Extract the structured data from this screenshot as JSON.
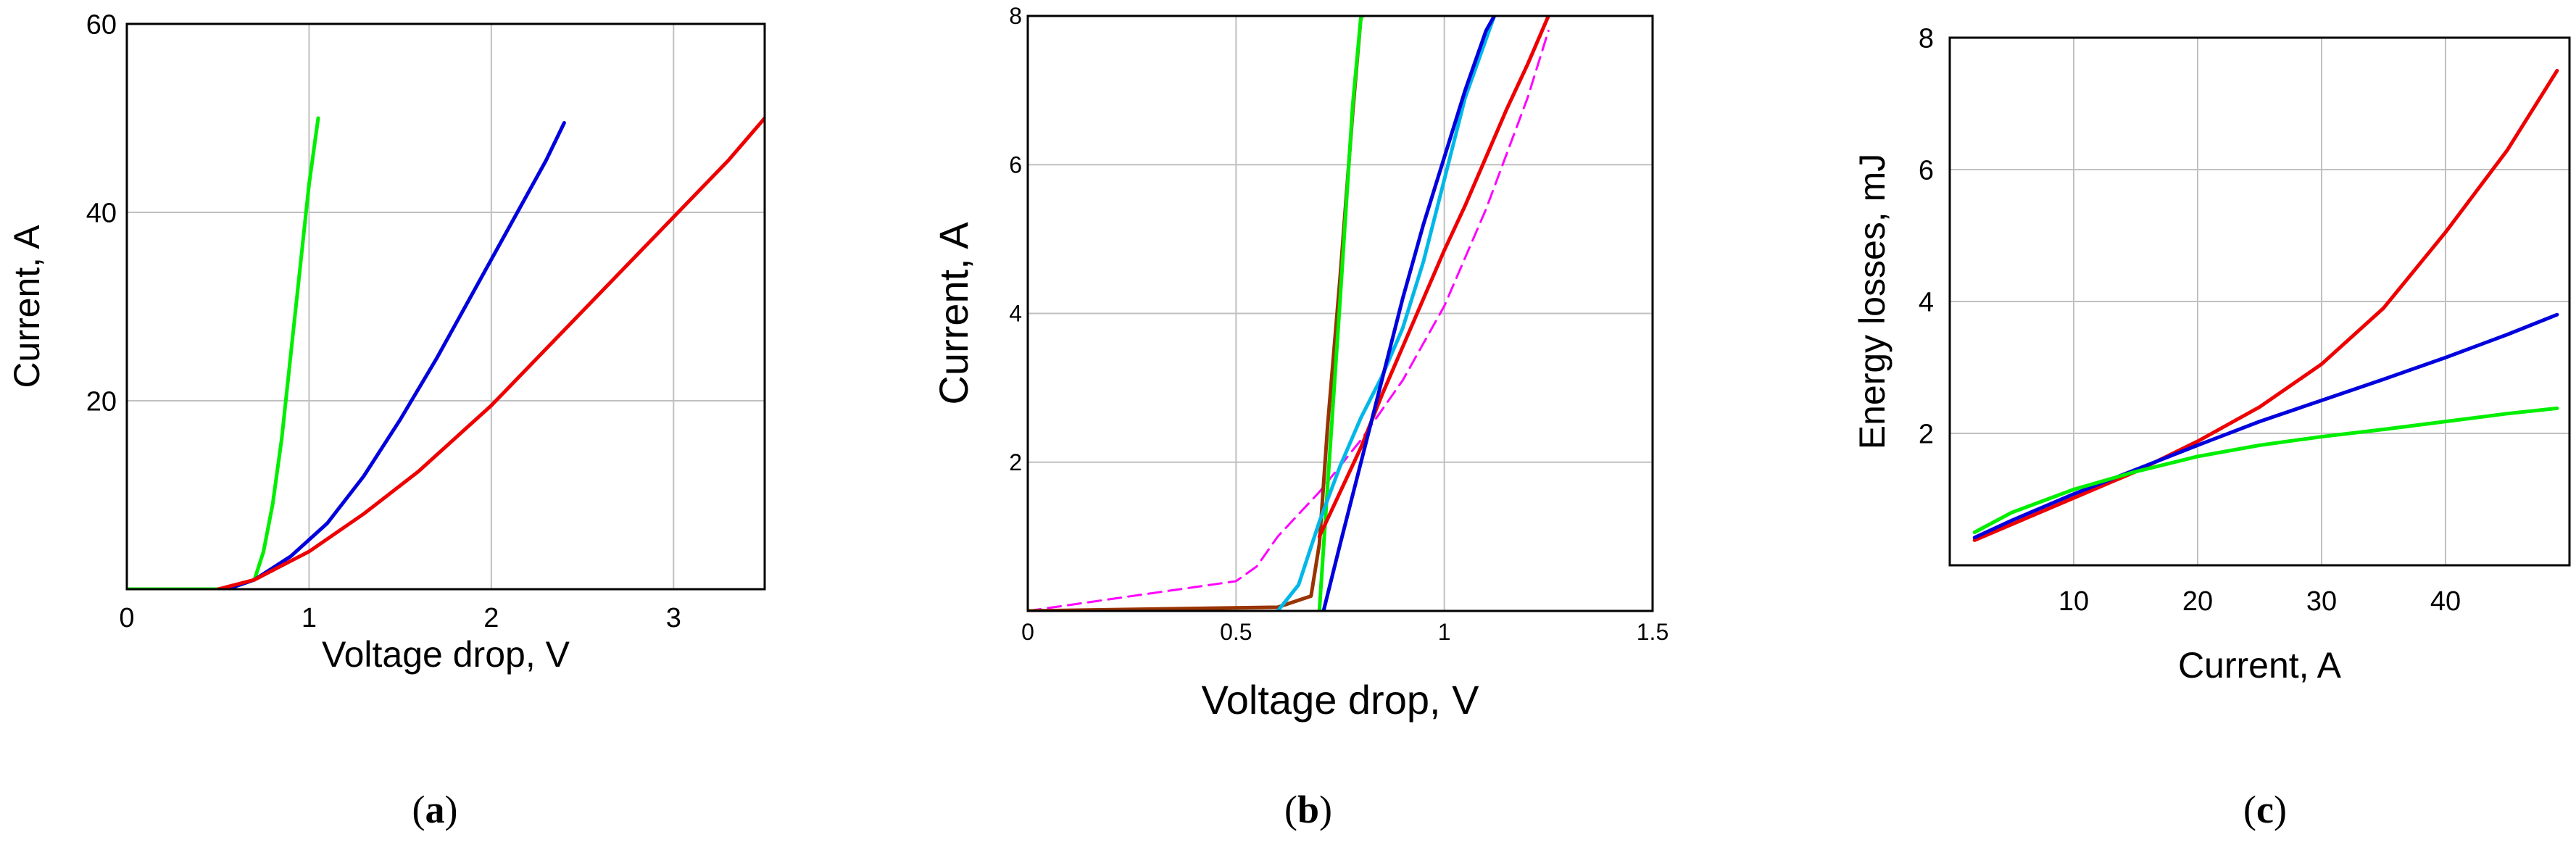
{
  "colors": {
    "green": "#00ee00",
    "blue": "#0000dd",
    "red": "#ee0000",
    "cyan": "#00b8e8",
    "magenta": "#ff00ff",
    "brown": "#993300",
    "grid": "#c0c0c0",
    "frame": "#000000"
  },
  "chart_data": [
    {
      "id": "a",
      "type": "line",
      "caption_letter": "a",
      "xlabel": "Voltage drop, V",
      "ylabel": "Current, A",
      "xlim": [
        0,
        3.5
      ],
      "ylim": [
        0,
        60
      ],
      "xticks": [
        0,
        1,
        2,
        3
      ],
      "yticks": [
        20,
        40,
        60
      ],
      "xtick_labels": [
        "0",
        "1",
        "2",
        "3"
      ],
      "ytick_labels": [
        "20",
        "40",
        "60"
      ],
      "grid": true,
      "series": [
        {
          "name": "green",
          "color": "#00ee00",
          "style": "solid",
          "x": [
            0,
            0.55,
            0.7,
            0.75,
            0.8,
            0.85,
            0.9,
            0.95,
            1.0,
            1.05
          ],
          "y": [
            0,
            0,
            1.0,
            4,
            9,
            16,
            25,
            34,
            43,
            50
          ]
        },
        {
          "name": "blue",
          "color": "#0000dd",
          "style": "solid",
          "x": [
            0.55,
            0.7,
            0.9,
            1.1,
            1.3,
            1.5,
            1.7,
            1.9,
            2.1,
            2.3,
            2.4
          ],
          "y": [
            0,
            1.0,
            3.5,
            7,
            12,
            18,
            24.5,
            31.5,
            38.5,
            45.5,
            49.5
          ]
        },
        {
          "name": "red",
          "color": "#ee0000",
          "style": "solid",
          "x": [
            0.5,
            0.7,
            1.0,
            1.3,
            1.6,
            2.0,
            2.5,
            3.0,
            3.3,
            3.5
          ],
          "y": [
            0,
            1.0,
            4.0,
            8.0,
            12.5,
            19.5,
            29.5,
            39.5,
            45.5,
            50
          ]
        }
      ]
    },
    {
      "id": "b",
      "type": "line",
      "caption_letter": "b",
      "xlabel": "Voltage drop, V",
      "ylabel": "Current, A",
      "xlim": [
        0,
        1.5
      ],
      "ylim": [
        0,
        8
      ],
      "xticks": [
        0,
        0.5,
        1,
        1.5
      ],
      "yticks": [
        2,
        4,
        6,
        8
      ],
      "xtick_labels": [
        "0",
        "0.5",
        "1",
        "1.5"
      ],
      "ytick_labels": [
        "2",
        "4",
        "6",
        "8"
      ],
      "grid": true,
      "series": [
        {
          "name": "magenta (dashed)",
          "color": "#ff00ff",
          "style": "dashed",
          "x": [
            0,
            0.5,
            0.55,
            0.6,
            0.7,
            0.8,
            0.9,
            1.0,
            1.1,
            1.2,
            1.25
          ],
          "y": [
            0,
            0.4,
            0.6,
            1.0,
            1.6,
            2.3,
            3.1,
            4.1,
            5.4,
            6.9,
            7.8
          ]
        },
        {
          "name": "brown",
          "color": "#993300",
          "style": "solid",
          "x": [
            0,
            0.6,
            0.68,
            0.7,
            0.72,
            0.75,
            0.78,
            0.8
          ],
          "y": [
            0,
            0.05,
            0.2,
            0.9,
            2.5,
            4.5,
            6.7,
            8
          ]
        },
        {
          "name": "green",
          "color": "#00ee00",
          "style": "solid",
          "x": [
            0.7,
            0.72,
            0.75,
            0.78,
            0.8,
            0.805
          ],
          "y": [
            0,
            1.7,
            4.2,
            6.8,
            8,
            8
          ]
        },
        {
          "name": "cyan",
          "color": "#00b8e8",
          "style": "solid",
          "x": [
            0.6,
            0.65,
            0.7,
            0.75,
            0.8,
            0.85,
            0.9,
            0.95,
            1.0,
            1.05,
            1.12
          ],
          "y": [
            0,
            0.35,
            1.2,
            1.95,
            2.6,
            3.15,
            3.8,
            4.7,
            5.8,
            6.9,
            8
          ]
        },
        {
          "name": "red",
          "color": "#ee0000",
          "style": "solid",
          "x": [
            0.7,
            0.75,
            0.8,
            0.85,
            0.9,
            0.95,
            1.0,
            1.05,
            1.1,
            1.15,
            1.2,
            1.25
          ],
          "y": [
            1.0,
            1.6,
            2.2,
            2.9,
            3.55,
            4.2,
            4.85,
            5.45,
            6.1,
            6.75,
            7.35,
            8
          ]
        },
        {
          "name": "blue",
          "color": "#0000dd",
          "style": "solid",
          "x": [
            0.71,
            0.75,
            0.8,
            0.85,
            0.9,
            0.95,
            1.0,
            1.05,
            1.1,
            1.12
          ],
          "y": [
            0,
            0.9,
            2.0,
            3.1,
            4.2,
            5.2,
            6.1,
            7.0,
            7.8,
            8
          ]
        }
      ]
    },
    {
      "id": "c",
      "type": "line",
      "caption_letter": "c",
      "xlabel": "Current, A",
      "ylabel": "Energy losses, mJ",
      "xlim": [
        0,
        50
      ],
      "ylim": [
        0,
        8
      ],
      "xticks": [
        0,
        10,
        20,
        30,
        40
      ],
      "yticks": [
        2,
        4,
        6,
        8
      ],
      "xtick_labels": [
        "",
        "10",
        "20",
        "30",
        "40"
      ],
      "ytick_labels": [
        "2",
        "4",
        "6",
        "8"
      ],
      "grid": true,
      "series": [
        {
          "name": "red",
          "color": "#ee0000",
          "style": "solid",
          "x": [
            2,
            5,
            10,
            15,
            20,
            25,
            30,
            35,
            40,
            45,
            49
          ],
          "y": [
            0.38,
            0.62,
            1.02,
            1.42,
            1.88,
            2.4,
            3.05,
            3.9,
            5.05,
            6.3,
            7.5
          ]
        },
        {
          "name": "blue",
          "color": "#0000dd",
          "style": "solid",
          "x": [
            2,
            5,
            10,
            15,
            20,
            25,
            30,
            35,
            40,
            45,
            49
          ],
          "y": [
            0.42,
            0.68,
            1.08,
            1.45,
            1.82,
            2.18,
            2.5,
            2.82,
            3.15,
            3.5,
            3.8
          ]
        },
        {
          "name": "green",
          "color": "#00ee00",
          "style": "solid",
          "x": [
            2,
            5,
            10,
            15,
            20,
            25,
            30,
            35,
            40,
            45,
            49
          ],
          "y": [
            0.5,
            0.8,
            1.15,
            1.42,
            1.65,
            1.82,
            1.95,
            2.06,
            2.18,
            2.3,
            2.38
          ]
        }
      ]
    }
  ]
}
